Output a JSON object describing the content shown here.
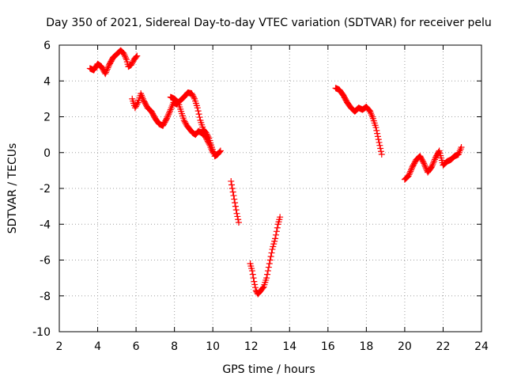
{
  "chart_data": {
    "type": "scatter",
    "title": "Day 350 of 2021, Sidereal Day-to-day VTEC variation (SDTVAR) for receiver pelu",
    "xlabel": "GPS time / hours",
    "ylabel": "SDTVAR / TECUs",
    "xlim": [
      2,
      24
    ],
    "ylim": [
      -10,
      6
    ],
    "xticks": [
      2,
      4,
      6,
      8,
      10,
      12,
      14,
      16,
      18,
      20,
      22,
      24
    ],
    "yticks": [
      -10,
      -8,
      -6,
      -4,
      -2,
      0,
      2,
      4,
      6
    ],
    "xtick_labels": [
      "2",
      "4",
      "6",
      "8",
      "10",
      "12",
      "14",
      "16",
      "18",
      "20",
      "22",
      "24"
    ],
    "ytick_labels": [
      "-10",
      "-8",
      "-6",
      "-4",
      "-2",
      "0",
      "2",
      "4",
      "6"
    ],
    "grid": true,
    "marker": "+",
    "color": "#ff0000",
    "series": [
      {
        "name": "segment-1",
        "x": [
          3.6,
          3.8,
          4.0,
          4.2,
          4.4,
          4.6,
          4.8,
          5.0,
          5.2,
          5.35,
          5.5,
          5.6,
          5.75,
          5.9,
          6.05
        ],
        "y": [
          4.7,
          4.6,
          4.95,
          4.8,
          4.4,
          4.9,
          5.3,
          5.5,
          5.7,
          5.55,
          5.2,
          4.8,
          4.9,
          5.2,
          5.4
        ]
      },
      {
        "name": "segment-2",
        "x": [
          5.8,
          5.95,
          6.1,
          6.25,
          6.4,
          6.6,
          6.8,
          7.0,
          7.2,
          7.4,
          7.6,
          7.8,
          7.95,
          8.1,
          8.3,
          8.5,
          8.7,
          8.9,
          9.05,
          9.2,
          9.35,
          9.5,
          9.65,
          9.8,
          9.95,
          10.1,
          10.25,
          10.4
        ],
        "y": [
          3.0,
          2.5,
          2.8,
          3.3,
          2.9,
          2.5,
          2.3,
          1.9,
          1.6,
          1.5,
          1.9,
          2.4,
          2.8,
          2.7,
          2.9,
          3.1,
          3.35,
          3.3,
          3.0,
          2.5,
          1.8,
          1.3,
          1.1,
          0.8,
          0.3,
          -0.2,
          -0.1,
          0.1
        ]
      },
      {
        "name": "segment-3",
        "x": [
          7.8,
          8.0,
          8.2,
          8.35,
          8.5,
          8.65,
          8.8,
          8.95,
          9.1,
          9.25,
          9.4,
          9.55,
          9.7,
          9.85,
          10.0
        ],
        "y": [
          3.1,
          3.0,
          2.8,
          2.3,
          1.8,
          1.5,
          1.3,
          1.1,
          1.0,
          1.2,
          1.1,
          1.0,
          0.7,
          0.4,
          0.0
        ]
      },
      {
        "name": "segment-4",
        "x": [
          10.95,
          11.05,
          11.15,
          11.25,
          11.35
        ],
        "y": [
          -1.6,
          -2.2,
          -2.8,
          -3.4,
          -3.9
        ]
      },
      {
        "name": "segment-5",
        "x": [
          11.95,
          12.05,
          12.15,
          12.25,
          12.35,
          12.5,
          12.65,
          12.8,
          12.95,
          13.1,
          13.25,
          13.4,
          13.5
        ],
        "y": [
          -6.2,
          -6.6,
          -7.2,
          -7.7,
          -7.9,
          -7.7,
          -7.5,
          -7.0,
          -6.2,
          -5.4,
          -4.8,
          -4.0,
          -3.6
        ]
      },
      {
        "name": "segment-6",
        "x": [
          16.4,
          16.6,
          16.8,
          17.0,
          17.2,
          17.4,
          17.6,
          17.8,
          18.0,
          18.2,
          18.35,
          18.5,
          18.6,
          18.7,
          18.8
        ],
        "y": [
          3.6,
          3.5,
          3.2,
          2.8,
          2.5,
          2.3,
          2.5,
          2.4,
          2.55,
          2.3,
          1.9,
          1.4,
          0.9,
          0.4,
          -0.1
        ]
      },
      {
        "name": "segment-7",
        "x": [
          20.0,
          20.2,
          20.4,
          20.6,
          20.8,
          21.0,
          21.2,
          21.4,
          21.6,
          21.8,
          22.0,
          22.2,
          22.4,
          22.6,
          22.8,
          22.95
        ],
        "y": [
          -1.5,
          -1.3,
          -0.8,
          -0.4,
          -0.2,
          -0.6,
          -1.1,
          -0.8,
          -0.3,
          0.1,
          -0.7,
          -0.5,
          -0.4,
          -0.2,
          -0.1,
          0.3
        ]
      }
    ]
  }
}
